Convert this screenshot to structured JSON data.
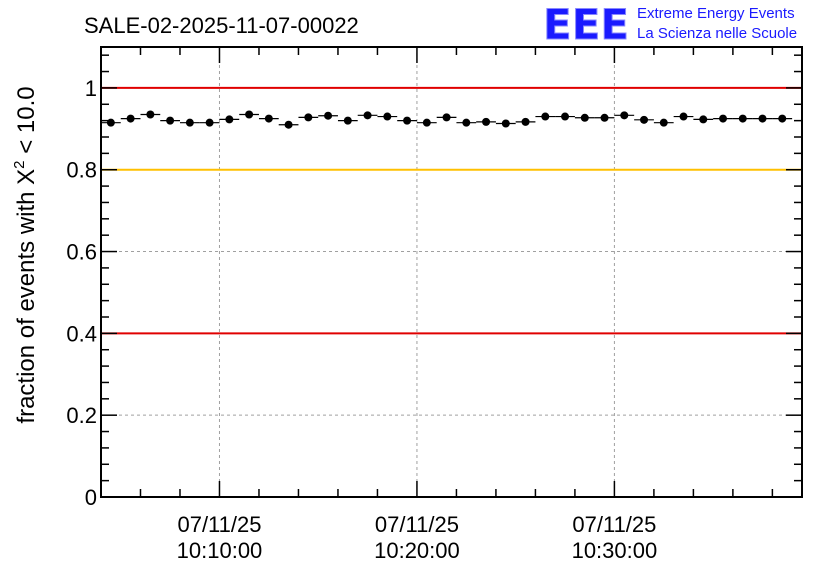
{
  "header": {
    "run_title": "SALE-02-2025-11-07-00022",
    "logo_text": "EEE",
    "logo_line1": "Extreme Energy Events",
    "logo_line2": "La Scienza nelle Scuole"
  },
  "colors": {
    "logo": "#1a1aff",
    "red_line": "#e00000",
    "yellow_line": "#ffc000",
    "markers": "#000000",
    "grid": "#a0a0a0"
  },
  "chart_data": {
    "type": "scatter",
    "title": "SALE-02-2025-11-07-00022",
    "ylabel_main": "fraction of events with X",
    "ylabel_sup": "2",
    "ylabel_tail": " < 10.0",
    "xlabel": "",
    "ylim": [
      0,
      1.1
    ],
    "xlim": [
      "10:04:00",
      "10:39:30"
    ],
    "y_ticks": [
      0,
      0.2,
      0.4,
      0.6,
      0.8,
      1
    ],
    "y_tick_labels": [
      "0",
      "0.2",
      "0.4",
      "0.6",
      "0.8",
      "1"
    ],
    "x_ticks": [
      "10:10:00",
      "10:20:00",
      "10:30:00"
    ],
    "x_tick_labels": [
      {
        "date": "07/11/25",
        "time": "10:10:00"
      },
      {
        "date": "07/11/25",
        "time": "10:20:00"
      },
      {
        "date": "07/11/25",
        "time": "10:30:00"
      }
    ],
    "grid": true,
    "reference_lines": [
      {
        "y": 1.0,
        "color": "red"
      },
      {
        "y": 0.8,
        "color": "yellow"
      },
      {
        "y": 0.4,
        "color": "red"
      }
    ],
    "x": [
      "10:04:30",
      "10:05:30",
      "10:06:30",
      "10:07:30",
      "10:08:30",
      "10:09:30",
      "10:10:30",
      "10:11:30",
      "10:12:30",
      "10:13:30",
      "10:14:30",
      "10:15:30",
      "10:16:30",
      "10:17:30",
      "10:18:30",
      "10:19:30",
      "10:20:30",
      "10:21:30",
      "10:22:30",
      "10:23:30",
      "10:24:30",
      "10:25:30",
      "10:26:30",
      "10:27:30",
      "10:28:30",
      "10:29:30",
      "10:30:30",
      "10:31:30",
      "10:32:30",
      "10:33:30",
      "10:34:30",
      "10:35:30",
      "10:36:30",
      "10:37:30",
      "10:38:30"
    ],
    "values": [
      0.915,
      0.925,
      0.935,
      0.92,
      0.915,
      0.915,
      0.923,
      0.935,
      0.925,
      0.91,
      0.928,
      0.932,
      0.92,
      0.933,
      0.93,
      0.92,
      0.915,
      0.928,
      0.915,
      0.917,
      0.913,
      0.917,
      0.93,
      0.93,
      0.927,
      0.927,
      0.933,
      0.922,
      0.915,
      0.93,
      0.923,
      0.925,
      0.925,
      0.925,
      0.925
    ],
    "errors": [
      0.005,
      0.005,
      0.005,
      0.005,
      0.005,
      0.005,
      0.005,
      0.005,
      0.005,
      0.005,
      0.005,
      0.005,
      0.005,
      0.005,
      0.005,
      0.005,
      0.005,
      0.005,
      0.005,
      0.005,
      0.005,
      0.005,
      0.005,
      0.005,
      0.005,
      0.005,
      0.005,
      0.005,
      0.005,
      0.005,
      0.005,
      0.005,
      0.005,
      0.005,
      0.005
    ]
  }
}
